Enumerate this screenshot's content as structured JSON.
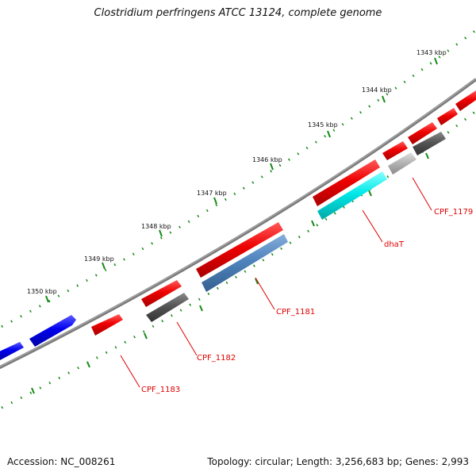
{
  "title": "Clostridium perfringens ATCC 13124, complete genome",
  "footer": {
    "accession": "Accession: NC_008261",
    "summary": "Topology: circular; Length: 3,256,683 bp; Genes: 2,993"
  },
  "ticks": [
    "1343 kbp",
    "1344 kbp",
    "1345 kbp",
    "1346 kbp",
    "1347 kbp",
    "1348 kbp",
    "1349 kbp",
    "1350 kbp"
  ],
  "gene_labels": [
    "CPF_1179",
    "dhaT",
    "CPF_1181",
    "CPF_1182",
    "CPF_1183"
  ],
  "colors": {
    "red": "#ee0000",
    "blue": "#0000ee",
    "steelblue": "#4f84bd",
    "cyan": "#00e8e8",
    "darkgray": "#555555",
    "lightgray": "#b5b5b5",
    "backbone": "#808080",
    "tick": "#138a13"
  }
}
